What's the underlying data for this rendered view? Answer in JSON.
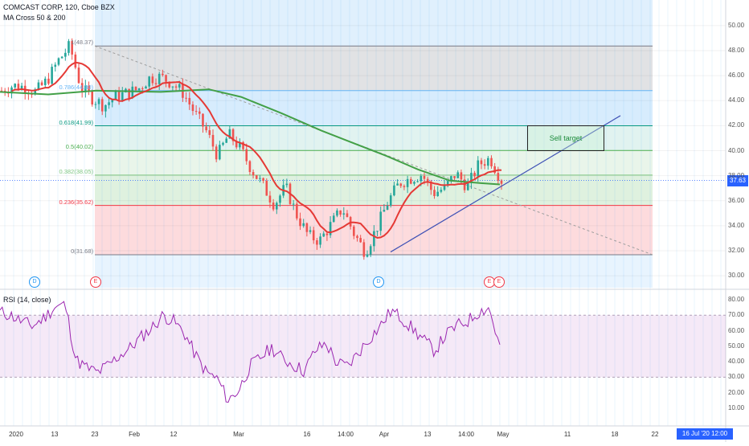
{
  "header": {
    "title": "COMCAST CORP, 120, Cboe BZX",
    "indicator": "MA Cross 50 & 200"
  },
  "rsi_label": "RSI (14, close)",
  "price_badge": "37.63",
  "date_badge": "16 Jul '20   12:00",
  "sell_target": "Sell target",
  "events": [
    {
      "label": "D",
      "type": "dividend"
    },
    {
      "label": "E",
      "type": "earnings"
    },
    {
      "label": "D",
      "type": "dividend"
    },
    {
      "label": "E",
      "type": "earnings"
    },
    {
      "label": "E",
      "type": "earnings"
    }
  ],
  "fib_levels": [
    {
      "label": "1(48.37)",
      "value": 48.37,
      "color": "#787b86"
    },
    {
      "label": "0.786(44.80)",
      "value": 44.8,
      "color": "#64b5f6"
    },
    {
      "label": "0.618(41.99)",
      "value": 41.99,
      "color": "#089981"
    },
    {
      "label": "0.5(40.02)",
      "value": 40.02,
      "color": "#4caf50"
    },
    {
      "label": "0.382(38.05)",
      "value": 38.05,
      "color": "#81c784"
    },
    {
      "label": "0.236(35.62)",
      "value": 35.62,
      "color": "#f23645"
    },
    {
      "label": "0(31.68)",
      "value": 31.68,
      "color": "#787b86"
    }
  ],
  "colors": {
    "ma_fast": "#e53935",
    "ma_slow": "#43a047",
    "rsi": "#9c27b0",
    "up": "#26a69a",
    "down": "#ef5350",
    "trend": "#3f51b5",
    "badge": "#2962ff"
  },
  "chart_data": [
    {
      "type": "candlestick",
      "title": "COMCAST CORP, 120, Cboe BZX",
      "y_ticks": [
        "50.00",
        "48.00",
        "46.00",
        "44.00",
        "42.00",
        "40.00",
        "38.00",
        "36.00",
        "34.00",
        "32.00",
        "30.00"
      ],
      "ylim": [
        29.2,
        51.5
      ],
      "x_ticks": [
        "2020",
        "13",
        "23",
        "Feb",
        "12",
        "Mar",
        "16",
        "14:00",
        "Apr",
        "13",
        "14:00",
        "May",
        "11",
        "18",
        "22"
      ],
      "series": [
        {
          "name": "MA Cross 50 & 200",
          "values": []
        },
        {
          "name": "",
          "values": []
        }
      ],
      "close_path": [
        44.8,
        45.2,
        45.1,
        44.7,
        45.6,
        47.2,
        48.37,
        45.0,
        44.2,
        43.6,
        44.3,
        44.6,
        44.9,
        45.8,
        45.9,
        45.4,
        44.6,
        43.0,
        41.6,
        39.6,
        41.3,
        40.2,
        38.5,
        37.2,
        35.7,
        37.1,
        34.8,
        33.2,
        32.8,
        34.1,
        35.4,
        33.4,
        31.9,
        33.8,
        35.9,
        37.4,
        37.8,
        38.1,
        36.6,
        37.0,
        38.2,
        37.1,
        38.9,
        39.4,
        37.63
      ],
      "trendline": [
        [
          31.68,
          0
        ],
        [
          42.7,
          1
        ]
      ]
    },
    {
      "type": "line",
      "title": "RSI (14, close)",
      "y_ticks": [
        "80.00",
        "70.00",
        "60.00",
        "50.00",
        "40.00",
        "30.00",
        "20.00",
        "10.00"
      ],
      "ylim": [
        5,
        85
      ],
      "band": [
        30,
        70
      ],
      "values": [
        72,
        70,
        66,
        63,
        68,
        75,
        77,
        41,
        36,
        33,
        38,
        44,
        49,
        56,
        62,
        70,
        66,
        58,
        44,
        33,
        29,
        15,
        22,
        37,
        43,
        49,
        42,
        38,
        34,
        47,
        52,
        39,
        37,
        46,
        55,
        63,
        73,
        68,
        61,
        54,
        47,
        57,
        63,
        66,
        72,
        75,
        49
      ]
    }
  ]
}
